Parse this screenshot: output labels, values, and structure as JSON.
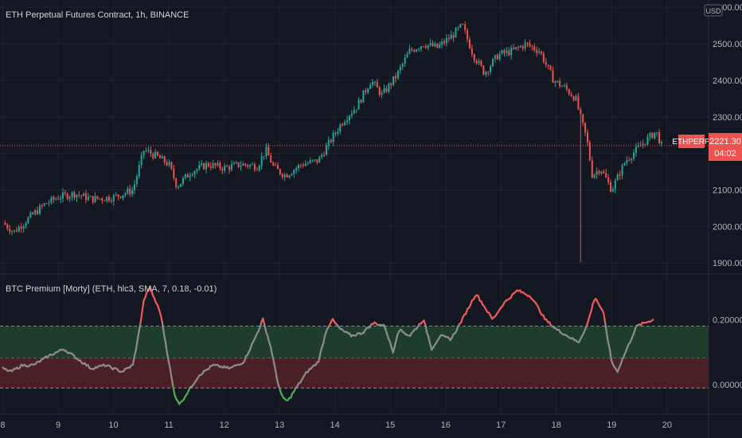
{
  "colors": {
    "background": "#131722",
    "grid": "#1f2330",
    "up": "#26a69a",
    "down": "#ef5350",
    "osc_neutral": "#8c8c8c",
    "osc_high": "#f05a5a",
    "osc_low": "#4caf50",
    "upper_band": "#1f3d2d",
    "lower_band": "#4a1f26",
    "price_tag": "#ef5350"
  },
  "chart_data": [
    {
      "type": "candlestick",
      "title": "ETH Perpetual Futures Contract, 1h, BINANCE",
      "ylim": [
        1870,
        2620
      ],
      "yticks": [
        "2600.00",
        "2500.00",
        "2400.00",
        "2300.00",
        "2200.00",
        "2100.00",
        "2000.00",
        "1900.00"
      ],
      "currency": "USD",
      "symbol": "ETHPERP",
      "last_price": "2221.30",
      "countdown": "04:02",
      "xlim": [
        7.95,
        20.75
      ],
      "xticks": [
        "8",
        "9",
        "10",
        "11",
        "12",
        "13",
        "14",
        "15",
        "16",
        "17",
        "18",
        "19",
        "20"
      ],
      "close_path": [
        [
          8.0,
          2010
        ],
        [
          8.2,
          1985
        ],
        [
          8.45,
          2020
        ],
        [
          8.75,
          2060
        ],
        [
          9.0,
          2080
        ],
        [
          9.3,
          2090
        ],
        [
          9.6,
          2075
        ],
        [
          10.0,
          2080
        ],
        [
          10.35,
          2100
        ],
        [
          10.55,
          2210
        ],
        [
          10.8,
          2190
        ],
        [
          11.0,
          2170
        ],
        [
          11.15,
          2110
        ],
        [
          11.4,
          2150
        ],
        [
          11.7,
          2170
        ],
        [
          12.0,
          2160
        ],
        [
          12.3,
          2170
        ],
        [
          12.6,
          2165
        ],
        [
          12.75,
          2210
        ],
        [
          12.9,
          2160
        ],
        [
          13.1,
          2140
        ],
        [
          13.4,
          2170
        ],
        [
          13.7,
          2180
        ],
        [
          13.9,
          2230
        ],
        [
          14.15,
          2290
        ],
        [
          14.4,
          2330
        ],
        [
          14.65,
          2400
        ],
        [
          14.85,
          2360
        ],
        [
          15.1,
          2410
        ],
        [
          15.35,
          2480
        ],
        [
          15.6,
          2500
        ],
        [
          15.85,
          2490
        ],
        [
          16.1,
          2520
        ],
        [
          16.3,
          2550
        ],
        [
          16.5,
          2470
        ],
        [
          16.7,
          2420
        ],
        [
          16.95,
          2470
        ],
        [
          17.2,
          2480
        ],
        [
          17.45,
          2500
        ],
        [
          17.7,
          2480
        ],
        [
          17.95,
          2400
        ],
        [
          18.15,
          2380
        ],
        [
          18.35,
          2350
        ],
        [
          18.45,
          2290
        ],
        [
          18.55,
          2240
        ],
        [
          18.65,
          2140
        ],
        [
          18.8,
          2160
        ],
        [
          19.0,
          2100
        ],
        [
          19.25,
          2180
        ],
        [
          19.45,
          2210
        ],
        [
          19.65,
          2240
        ],
        [
          19.8,
          2260
        ],
        [
          19.9,
          2221
        ]
      ]
    },
    {
      "type": "line",
      "title": "BTC Premium [Morty] (ETH, hlc3, SMA, 7, 0.18, -0.01)",
      "ylim": [
        -0.09,
        0.34
      ],
      "yticks": [
        "0.200000",
        "0.000000"
      ],
      "levels": [
        0.18,
        0.082,
        -0.01
      ],
      "high_threshold": 0.185,
      "low_threshold": -0.01,
      "series_path": [
        [
          8.0,
          0.05
        ],
        [
          8.15,
          0.04
        ],
        [
          8.35,
          0.06
        ],
        [
          8.55,
          0.06
        ],
        [
          8.85,
          0.09
        ],
        [
          9.1,
          0.11
        ],
        [
          9.35,
          0.08
        ],
        [
          9.6,
          0.05
        ],
        [
          9.85,
          0.06
        ],
        [
          10.15,
          0.04
        ],
        [
          10.35,
          0.06
        ],
        [
          10.45,
          0.15
        ],
        [
          10.55,
          0.26
        ],
        [
          10.65,
          0.3
        ],
        [
          10.85,
          0.22
        ],
        [
          11.0,
          0.07
        ],
        [
          11.1,
          -0.03
        ],
        [
          11.2,
          -0.06
        ],
        [
          11.35,
          -0.02
        ],
        [
          11.55,
          0.03
        ],
        [
          11.8,
          0.06
        ],
        [
          12.1,
          0.05
        ],
        [
          12.35,
          0.07
        ],
        [
          12.55,
          0.14
        ],
        [
          12.7,
          0.2
        ],
        [
          12.85,
          0.11
        ],
        [
          12.95,
          0.02
        ],
        [
          13.05,
          -0.04
        ],
        [
          13.15,
          -0.05
        ],
        [
          13.3,
          -0.01
        ],
        [
          13.5,
          0.04
        ],
        [
          13.7,
          0.07
        ],
        [
          13.85,
          0.17
        ],
        [
          13.95,
          0.2
        ],
        [
          14.1,
          0.17
        ],
        [
          14.3,
          0.15
        ],
        [
          14.5,
          0.16
        ],
        [
          14.7,
          0.19
        ],
        [
          14.9,
          0.18
        ],
        [
          15.05,
          0.1
        ],
        [
          15.15,
          0.17
        ],
        [
          15.35,
          0.15
        ],
        [
          15.6,
          0.2
        ],
        [
          15.75,
          0.11
        ],
        [
          15.9,
          0.15
        ],
        [
          16.1,
          0.14
        ],
        [
          16.3,
          0.2
        ],
        [
          16.55,
          0.28
        ],
        [
          16.7,
          0.24
        ],
        [
          16.85,
          0.2
        ],
        [
          17.05,
          0.25
        ],
        [
          17.3,
          0.29
        ],
        [
          17.55,
          0.27
        ],
        [
          17.8,
          0.2
        ],
        [
          18.0,
          0.17
        ],
        [
          18.2,
          0.15
        ],
        [
          18.4,
          0.13
        ],
        [
          18.55,
          0.18
        ],
        [
          18.7,
          0.27
        ],
        [
          18.85,
          0.22
        ],
        [
          19.0,
          0.07
        ],
        [
          19.1,
          0.04
        ],
        [
          19.25,
          0.1
        ],
        [
          19.45,
          0.18
        ],
        [
          19.6,
          0.19
        ],
        [
          19.75,
          0.2
        ]
      ]
    }
  ]
}
